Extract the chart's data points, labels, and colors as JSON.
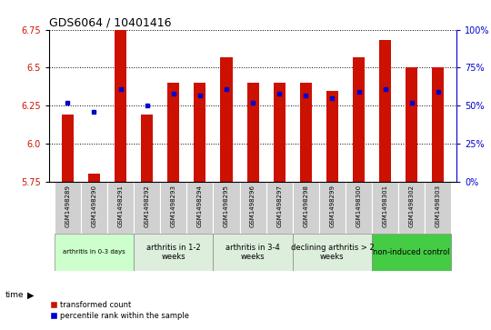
{
  "title": "GDS6064 / 10401416",
  "samples": [
    "GSM1498289",
    "GSM1498290",
    "GSM1498291",
    "GSM1498292",
    "GSM1498293",
    "GSM1498294",
    "GSM1498295",
    "GSM1498296",
    "GSM1498297",
    "GSM1498298",
    "GSM1498299",
    "GSM1498300",
    "GSM1498301",
    "GSM1498302",
    "GSM1498303"
  ],
  "red_values": [
    6.19,
    5.8,
    6.75,
    6.19,
    6.4,
    6.4,
    6.57,
    6.4,
    6.4,
    6.4,
    6.35,
    6.57,
    6.68,
    6.5,
    6.5
  ],
  "blue_values": [
    6.27,
    6.21,
    6.36,
    6.25,
    6.33,
    6.32,
    6.36,
    6.27,
    6.33,
    6.32,
    6.3,
    6.34,
    6.36,
    6.27,
    6.34
  ],
  "y_min": 5.75,
  "y_max": 6.75,
  "y_ticks": [
    5.75,
    6.0,
    6.25,
    6.5,
    6.75
  ],
  "right_y_ticks": [
    0,
    25,
    50,
    75,
    100
  ],
  "right_y_labels": [
    "0%",
    "25%",
    "50%",
    "75%",
    "100%"
  ],
  "groups": [
    {
      "label": "arthritis in 0-3 days",
      "start": 0,
      "end": 3,
      "color": "#ccffcc",
      "font_small": true
    },
    {
      "label": "arthritis in 1-2\nweeks",
      "start": 3,
      "end": 6,
      "color": "#ddeedd",
      "font_small": false
    },
    {
      "label": "arthritis in 3-4\nweeks",
      "start": 6,
      "end": 9,
      "color": "#ddeedd",
      "font_small": false
    },
    {
      "label": "declining arthritis > 2\nweeks",
      "start": 9,
      "end": 12,
      "color": "#ddeedd",
      "font_small": false
    },
    {
      "label": "non-induced control",
      "start": 12,
      "end": 15,
      "color": "#44cc44",
      "font_small": false
    }
  ],
  "bar_color": "#cc1100",
  "dot_color": "#0000cc",
  "bar_width": 0.45,
  "ylabel_left_color": "#cc1100",
  "ylabel_right_color": "#0000cc",
  "legend_red": "transformed count",
  "legend_blue": "percentile rank within the sample",
  "sample_bg": "#d0d0d0"
}
